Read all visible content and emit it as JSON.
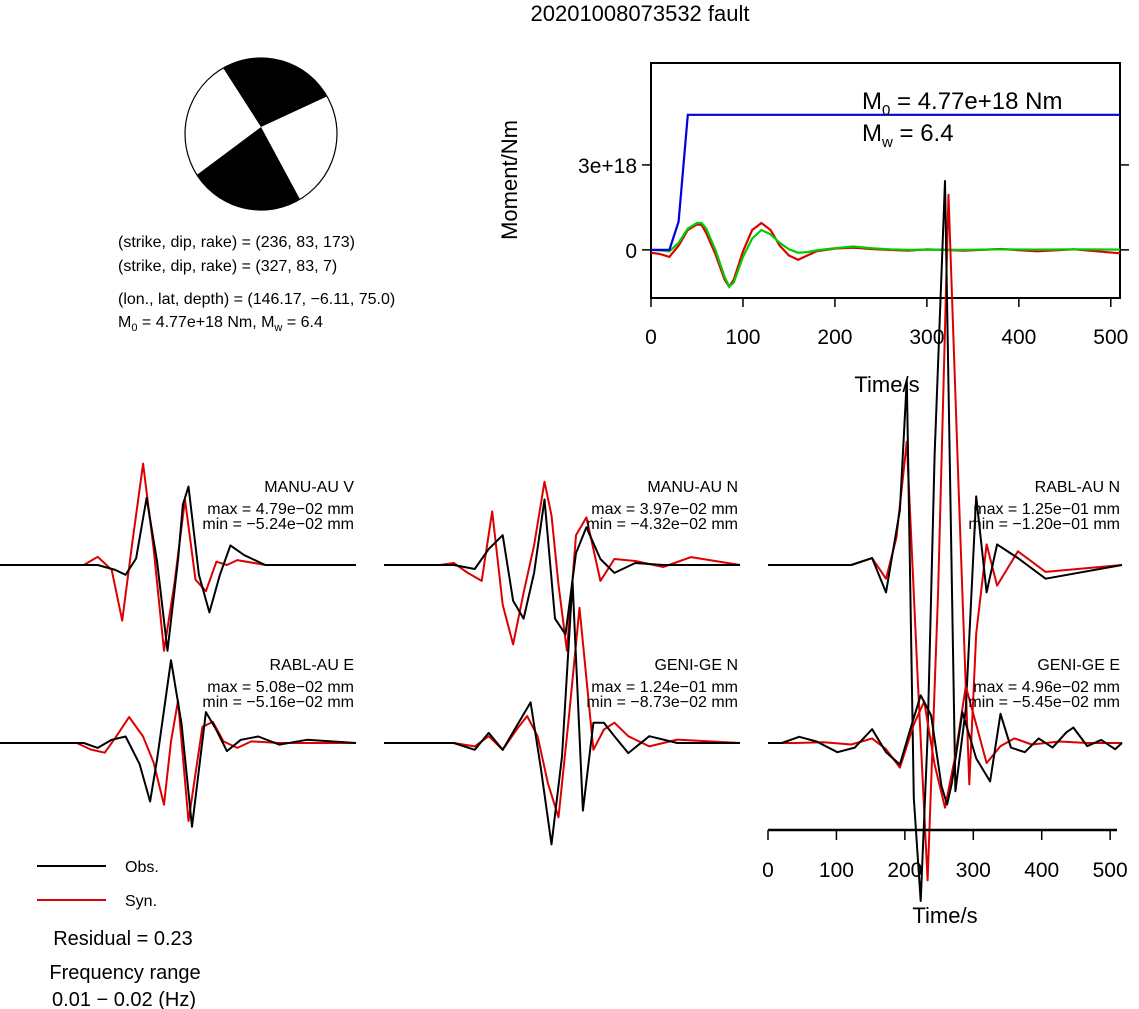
{
  "title": "20201008073532 fault",
  "beachball": {
    "colors": {
      "compression": "#000000",
      "dilatation": "#ffffff"
    },
    "planes": [
      "(strike, dip, rake) = (236, 83, 173)",
      "(strike, dip, rake) = (327, 83, 7)"
    ],
    "location": "(lon., lat, depth) = (146.17, −6.11, 75.0)",
    "moment_label": {
      "m": "M",
      "sub": "0",
      "rest": " = 4.77e+18 Nm, M",
      "sub2": "w",
      "rest2": " = 6.4"
    }
  },
  "moment_panel": {
    "ylabel": "Moment/Nm",
    "xlabel": "Time/s",
    "annotation": {
      "m0": {
        "m": "M",
        "sub": "0",
        "rest": " = 4.77e+18 Nm"
      },
      "mw": {
        "m": "M",
        "sub": "w",
        "rest": " = 6.4"
      }
    }
  },
  "waveform_axis": {
    "xlabel": "Time/s"
  },
  "legend": {
    "obs": "Obs.",
    "syn": "Syn."
  },
  "residual": "Residual = 0.23",
  "frequency": {
    "label": "Frequency range",
    "value": "0.01 − 0.02 (Hz)"
  },
  "chart_data": [
    {
      "type": "line",
      "name": "moment-rate-function",
      "xlabel": "Time/s",
      "ylabel": "Moment/Nm",
      "xlim": [
        0,
        510
      ],
      "ylim": [
        -1.7e+18,
        6.6e+18
      ],
      "x_ticks": [
        0,
        100,
        200,
        300,
        400,
        500
      ],
      "y_ticks": [
        {
          "value": 0,
          "label": "0"
        },
        {
          "value": 3e+18,
          "label": "3e+18"
        }
      ],
      "series": [
        {
          "role": "cumulative-moment",
          "color": "#0000dd",
          "x": [
            0,
            20,
            30,
            40,
            510
          ],
          "y": [
            0,
            0,
            1e+18,
            4.77e+18,
            4.77e+18
          ]
        },
        {
          "role": "green-trace",
          "color": "#00cc00",
          "x": [
            0,
            10,
            20,
            30,
            40,
            50,
            55,
            60,
            70,
            80,
            85,
            90,
            100,
            110,
            120,
            130,
            140,
            150,
            160,
            170,
            180,
            200,
            220,
            240,
            260,
            280,
            300,
            340,
            380,
            420,
            460,
            510
          ],
          "y": [
            0,
            -2e+16,
            -5e+16,
            2.5e+17,
            7.5e+17,
            9.5e+17,
            9.5e+17,
            7.5e+17,
            0,
            -9.5e+17,
            -1.3e+18,
            -1.15e+18,
            -2.5e+17,
            4e+17,
            7e+17,
            5.5e+17,
            2.5e+17,
            2e+16,
            -1e+17,
            -8e+16,
            -2e+16,
            6e+16,
            1.2e+17,
            6e+16,
            2e+16,
            0,
            1e+16,
            0.0,
            2e+16,
            1e+16,
            2e+16,
            1e+16
          ]
        },
        {
          "role": "red-trace",
          "color": "#dd0000",
          "x": [
            0,
            10,
            20,
            30,
            40,
            50,
            55,
            60,
            70,
            80,
            85,
            90,
            100,
            110,
            120,
            130,
            140,
            150,
            160,
            170,
            180,
            200,
            220,
            240,
            260,
            280,
            300,
            340,
            380,
            420,
            460,
            510
          ],
          "y": [
            -1e+17,
            -1.5e+17,
            -2.5e+17,
            1.5e+17,
            7e+17,
            9e+17,
            8.8e+17,
            6e+17,
            -1.5e+17,
            -1.05e+18,
            -1.3e+18,
            -1.05e+18,
            -5e+16,
            7e+17,
            9.5e+17,
            7e+17,
            1.5e+17,
            -2e+17,
            -3.5e+17,
            -2e+17,
            -5e+16,
            5e+16,
            8e+16,
            3e+16,
            0,
            -3e+16,
            2e+16,
            -3e+16,
            3e+16,
            -5e+16,
            2e+16,
            -1.2e+17
          ]
        }
      ]
    },
    {
      "type": "line",
      "name": "waveform-comparison",
      "xlabel": "Time/s",
      "xlim": [
        0,
        510
      ],
      "x_ticks": [
        0,
        100,
        200,
        300,
        400,
        500
      ],
      "legend": {
        "obs": "Obs.",
        "syn": "Syn."
      },
      "panels": [
        {
          "station": "MANU-AU V",
          "max": "max = 4.79e−02 mm",
          "min": "min = −5.24e−02 mm",
          "vmax": 4.79,
          "vmin": -5.24,
          "obs": {
            "color": "#000000",
            "t": [
              0,
              140,
              165,
              180,
              195,
              210,
              225,
              240,
              255,
              262,
              270,
              285,
              300,
              315,
              330,
              350,
              380,
              420,
              510
            ],
            "v": [
              0,
              0,
              -0.3,
              -0.6,
              0.4,
              4.1,
              0.2,
              -5.24,
              0.3,
              3.7,
              4.79,
              -0.6,
              -2.9,
              -0.6,
              1.2,
              0.6,
              0,
              0,
              0
            ]
          },
          "syn": {
            "color": "#dd0000",
            "t": [
              0,
              120,
              140,
              160,
              175,
              190,
              205,
              220,
              235,
              250,
              265,
              280,
              295,
              310,
              325,
              340,
              380,
              420,
              510
            ],
            "v": [
              0,
              0,
              0.5,
              -0.3,
              -3.4,
              1.5,
              6.2,
              1.0,
              -5.24,
              -1.1,
              4.0,
              -0.9,
              -1.6,
              0.2,
              0.0,
              0.3,
              0,
              0,
              0
            ]
          }
        },
        {
          "station": "MANU-AU N",
          "max": "max = 3.97e−02 mm",
          "min": "min = −4.32e−02 mm",
          "vmax": 3.97,
          "vmin": -4.32,
          "obs": {
            "color": "#000000",
            "t": [
              0,
              100,
              130,
              150,
              170,
              185,
              200,
              215,
              230,
              245,
              260,
              275,
              290,
              310,
              330,
              360,
              400,
              440,
              510
            ],
            "v": [
              0,
              0,
              -0.2,
              0.8,
              1.5,
              -1.8,
              -2.7,
              -0.4,
              3.3,
              -2.7,
              -3.5,
              0.6,
              1.9,
              0.3,
              -0.4,
              0.1,
              0,
              0,
              0
            ]
          },
          "syn": {
            "color": "#dd0000",
            "t": [
              0,
              80,
              100,
              120,
              140,
              155,
              170,
              185,
              200,
              215,
              230,
              240,
              250,
              262,
              275,
              290,
              310,
              330,
              360,
              400,
              440,
              510
            ],
            "v": [
              0,
              0,
              0.1,
              -0.4,
              -0.8,
              2.7,
              -2.0,
              -4.0,
              -1.4,
              1.0,
              4.2,
              2.5,
              -1.0,
              -4.32,
              1.5,
              2.4,
              -0.8,
              0.3,
              0.2,
              -0.1,
              0.4,
              0
            ]
          }
        },
        {
          "station": "RABL-AU N",
          "max": "max = 1.25e−01 mm",
          "min": "min = −1.20e−01 mm",
          "vmax": 1.25,
          "vmin": -1.2,
          "obs": {
            "color": "#000000",
            "t": [
              0,
              120,
              150,
              170,
              190,
              200,
              210,
              220,
              230,
              240,
              255,
              270,
              285,
              300,
              315,
              330,
              360,
              400,
              510
            ],
            "v": [
              0,
              0,
              0.1,
              -0.4,
              0.8,
              2.7,
              -3.4,
              -4.9,
              -2.5,
              1.6,
              5.6,
              -3.3,
              -2.1,
              1.0,
              -0.4,
              0.3,
              0.1,
              -0.2,
              0
            ]
          },
          "syn": {
            "color": "#dd0000",
            "t": [
              0,
              120,
              150,
              170,
              185,
              200,
              215,
              230,
              245,
              260,
              275,
              290,
              300,
              315,
              330,
              360,
              400,
              510
            ],
            "v": [
              0,
              0,
              0.1,
              -0.2,
              0.4,
              1.8,
              -1.5,
              -4.6,
              -0.4,
              5.4,
              1.0,
              -3.2,
              -1.0,
              0.3,
              -0.3,
              0.2,
              -0.1,
              0
            ]
          }
        },
        {
          "station": "RABL-AU E",
          "max": "max = 5.08e−02 mm",
          "min": "min = −5.16e−02 mm",
          "vmax": 5.08,
          "vmin": -5.16,
          "obs": {
            "color": "#000000",
            "t": [
              0,
              120,
              140,
              160,
              180,
              200,
              215,
              225,
              245,
              260,
              275,
              295,
              310,
              325,
              345,
              370,
              400,
              440,
              510
            ],
            "v": [
              0,
              0,
              -0.3,
              0.2,
              0.4,
              -1.3,
              -3.6,
              -1.0,
              5.1,
              1.2,
              -5.16,
              1.9,
              0.8,
              -0.5,
              0.2,
              0.4,
              -0.1,
              0.2,
              0
            ]
          },
          "syn": {
            "color": "#dd0000",
            "t": [
              0,
              110,
              130,
              150,
              165,
              185,
              205,
              220,
              235,
              245,
              255,
              270,
              290,
              305,
              320,
              340,
              360,
              400,
              440,
              510
            ],
            "v": [
              0,
              0,
              -0.4,
              -0.6,
              0.3,
              1.6,
              0.4,
              -1.2,
              -3.8,
              0.1,
              2.6,
              -4.8,
              1.0,
              1.3,
              0.1,
              -0.3,
              0.1,
              0.0,
              0.0,
              0
            ]
          }
        },
        {
          "station": "GENI-GE N",
          "max": "max = 1.24e−01 mm",
          "min": "min = −8.73e−02 mm",
          "vmax": 1.24,
          "vmin": -0.873,
          "obs": {
            "color": "#000000",
            "t": [
              0,
              100,
              130,
              150,
              170,
              190,
              210,
              225,
              240,
              255,
              270,
              285,
              300,
              315,
              330,
              350,
              380,
              420,
              510
            ],
            "v": [
              0,
              0,
              -0.1,
              0.15,
              -0.1,
              0.25,
              0.6,
              -0.4,
              -1.5,
              -0.2,
              2.4,
              -1.0,
              0.3,
              0.3,
              0.1,
              -0.15,
              0.1,
              0,
              0
            ]
          },
          "syn": {
            "color": "#dd0000",
            "t": [
              0,
              100,
              130,
              150,
              170,
              190,
              205,
              220,
              235,
              250,
              265,
              280,
              300,
              315,
              330,
              350,
              380,
              420,
              510
            ],
            "v": [
              0,
              0,
              -0.05,
              0.1,
              -0.1,
              0.2,
              0.4,
              0.1,
              -0.6,
              -1.1,
              0.4,
              2.0,
              -0.1,
              0.2,
              0.3,
              0.1,
              -0.05,
              0.05,
              0
            ]
          }
        },
        {
          "station": "GENI-GE E",
          "max": "max = 4.96e−02 mm",
          "min": "min = −5.45e−02 mm",
          "vmax": 4.96,
          "vmin": -5.45,
          "obs": {
            "color": "#000000",
            "t": [
              0,
              20,
              45,
              70,
              100,
              125,
              150,
              170,
              190,
              205,
              220,
              235,
              250,
              258,
              265,
              280,
              300,
              320,
              335,
              350,
              370,
              390,
              410,
              430,
              440,
              460,
              480,
              500,
              510
            ],
            "v": [
              0,
              0,
              0.4,
              0.1,
              -0.6,
              -0.3,
              0.9,
              -0.6,
              -1.4,
              0.9,
              3.1,
              1.8,
              -2.8,
              -4.0,
              -2.6,
              2.0,
              -1.0,
              -2.5,
              1.9,
              -0.3,
              -0.6,
              0.3,
              -0.3,
              0.7,
              1.0,
              -0.2,
              0.2,
              -0.4,
              0
            ]
          },
          "syn": {
            "color": "#dd0000",
            "t": [
              0,
              40,
              80,
              120,
              150,
              170,
              190,
              210,
              225,
              240,
              255,
              270,
              285,
              300,
              315,
              335,
              355,
              380,
              420,
              460,
              510
            ],
            "v": [
              0,
              0,
              0.05,
              -0.1,
              0.3,
              -0.4,
              -1.6,
              1.2,
              2.7,
              -1.4,
              -4.2,
              -0.8,
              3.7,
              1.2,
              -1.3,
              -0.2,
              0.3,
              -0.1,
              0.1,
              0.0,
              0
            ]
          }
        }
      ]
    }
  ]
}
